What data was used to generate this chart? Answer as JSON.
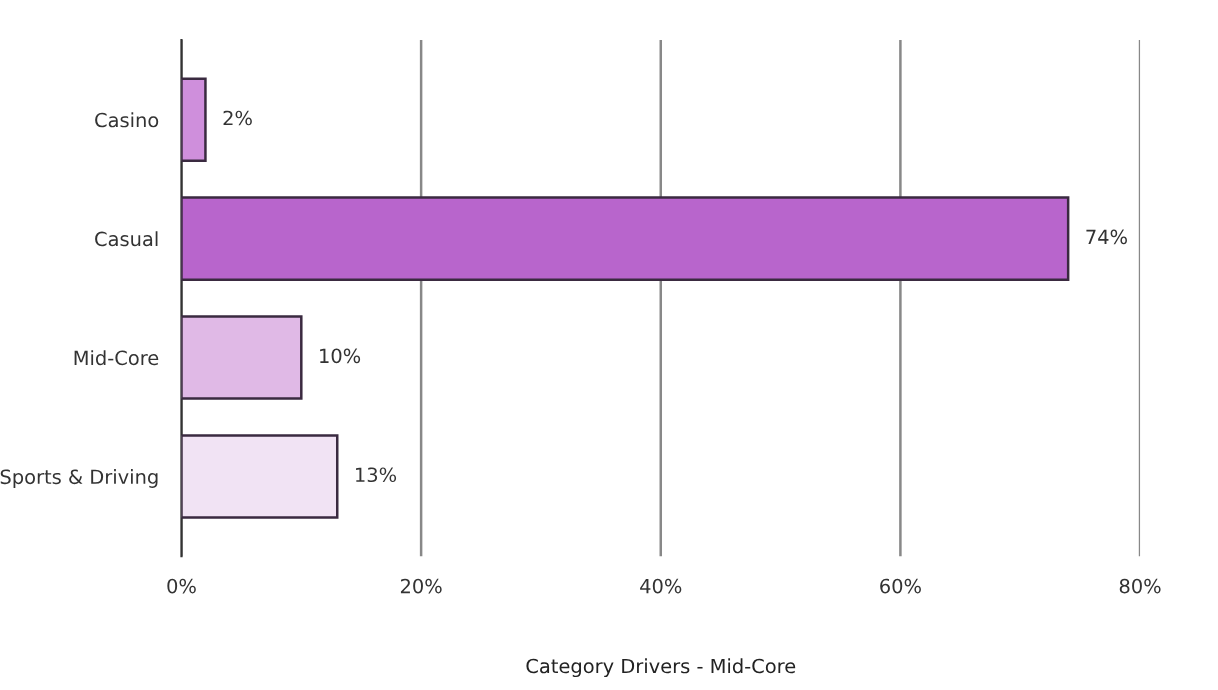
{
  "chart_data": {
    "type": "bar",
    "orientation": "horizontal",
    "xlabel": "Category Drivers - Mid-Core",
    "categories": [
      "Casino",
      "Casual",
      "Mid-Core",
      "Sports & Driving"
    ],
    "values": [
      2,
      74,
      10,
      13
    ],
    "colors": [
      "#cf8fdc",
      "#b865cc",
      "#e0b9e6",
      "#f1e3f4"
    ],
    "value_labels": [
      "2%",
      "74%",
      "10%",
      "13%"
    ],
    "xlim": [
      0,
      80
    ],
    "xticks": [
      {
        "value": 0,
        "label": "0%"
      },
      {
        "value": 20,
        "label": "20%"
      },
      {
        "value": 40,
        "label": "40%"
      },
      {
        "value": 60,
        "label": "60%"
      },
      {
        "value": 80,
        "label": "80%"
      }
    ],
    "grid": "x",
    "legend": false
  }
}
